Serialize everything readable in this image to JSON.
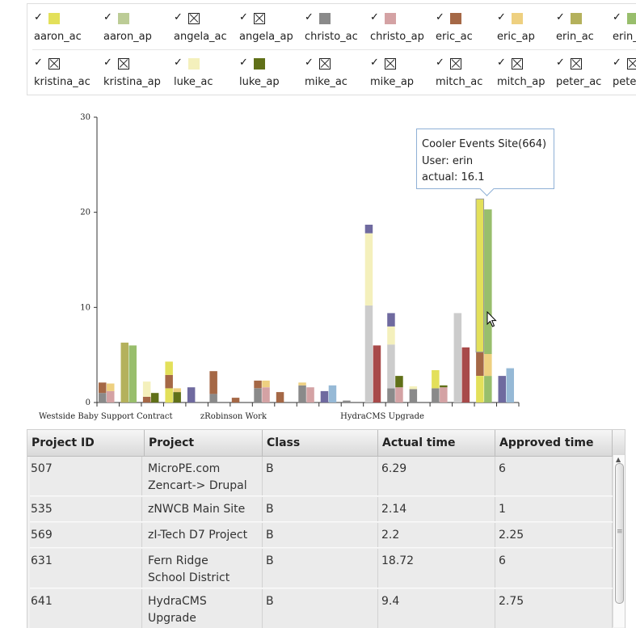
{
  "legend": {
    "rows": [
      [
        {
          "name": "aaron_ac",
          "checked": true,
          "visible": true,
          "color": "#e3e05a"
        },
        {
          "name": "aaron_ap",
          "checked": true,
          "visible": true,
          "color": "#bccc96"
        },
        {
          "name": "angela_ac",
          "checked": true,
          "visible": false,
          "color": "#cccccc"
        },
        {
          "name": "angela_ap",
          "checked": true,
          "visible": false,
          "color": "#e5e5e5"
        },
        {
          "name": "christo_ac",
          "checked": true,
          "visible": true,
          "color": "#8a8a8a"
        },
        {
          "name": "christo_ap",
          "checked": true,
          "visible": true,
          "color": "#d4a2a4"
        },
        {
          "name": "eric_ac",
          "checked": true,
          "visible": true,
          "color": "#a56846"
        },
        {
          "name": "eric_ap",
          "checked": true,
          "visible": true,
          "color": "#eed080"
        },
        {
          "name": "erin_ac",
          "checked": true,
          "visible": true,
          "color": "#b4b15c"
        },
        {
          "name": "erin_ap",
          "checked": true,
          "visible": true,
          "color": "#98be6c"
        }
      ],
      [
        {
          "name": "kristina_ac",
          "checked": true,
          "visible": false,
          "color": "#dddddd"
        },
        {
          "name": "kristina_ap",
          "checked": true,
          "visible": false,
          "color": "#ebebeb"
        },
        {
          "name": "luke_ac",
          "checked": true,
          "visible": true,
          "color": "#f4f0bc"
        },
        {
          "name": "luke_ap",
          "checked": true,
          "visible": true,
          "color": "#607018"
        },
        {
          "name": "mike_ac",
          "checked": true,
          "visible": false,
          "color": "#aaaaaa"
        },
        {
          "name": "mike_ap",
          "checked": true,
          "visible": false,
          "color": "#bbbbbb"
        },
        {
          "name": "mitch_ac",
          "checked": true,
          "visible": false,
          "color": "#a84a4a"
        },
        {
          "name": "mitch_ap",
          "checked": true,
          "visible": false,
          "color": "#c47676"
        },
        {
          "name": "peter_ac",
          "checked": true,
          "visible": false,
          "color": "#6f6a9f"
        },
        {
          "name": "peter_ap",
          "checked": true,
          "visible": false,
          "color": "#96b9d6"
        }
      ]
    ],
    "check_glyph": "✓"
  },
  "tooltip": {
    "line1": "Cooler Events Site(664)",
    "line2": "User: erin",
    "line3": "actual: 16.1"
  },
  "chart_data": {
    "type": "bar",
    "stacked": true,
    "ylim": [
      0,
      30
    ],
    "yticks": [
      0,
      10,
      20,
      30
    ],
    "grid": false,
    "visible_category_labels": [
      "Westside Baby Support Contract",
      "zRobinson Work",
      "HydraCMS Upgrade"
    ],
    "bars": [
      {
        "group": 0,
        "segments": [
          {
            "series": "christo_ac",
            "value": 1.0
          },
          {
            "series": "eric_ac",
            "value": 1.1
          }
        ]
      },
      {
        "group": 0,
        "segments": [
          {
            "series": "christo_ap",
            "value": 1.2
          },
          {
            "series": "eric_ap",
            "value": 0.8
          }
        ]
      },
      {
        "group": 1,
        "segments": [
          {
            "series": "erin_ac",
            "value": 6.3
          }
        ]
      },
      {
        "group": 1,
        "segments": [
          {
            "series": "erin_ap",
            "value": 6.0
          }
        ]
      },
      {
        "group": 2,
        "segments": [
          {
            "series": "eric_ac",
            "value": 0.6
          },
          {
            "series": "luke_ac",
            "value": 1.6
          }
        ]
      },
      {
        "group": 2,
        "segments": [
          {
            "series": "luke_ap",
            "value": 1.0
          }
        ]
      },
      {
        "group": 3,
        "segments": [
          {
            "series": "aaron_ac",
            "value": 1.5
          },
          {
            "series": "eric_ac",
            "value": 1.4
          },
          {
            "series": "aaron_ac",
            "value": 1.4
          }
        ]
      },
      {
        "group": 3,
        "segments": [
          {
            "series": "luke_ap",
            "value": 1.1
          },
          {
            "series": "eric_ap",
            "value": 0.4
          }
        ]
      },
      {
        "group": 4,
        "segments": [
          {
            "series": "peter_ac",
            "value": 1.6
          }
        ]
      },
      {
        "group": 5,
        "segments": [
          {
            "series": "christo_ac",
            "value": 0.9
          },
          {
            "series": "eric_ac",
            "value": 2.4
          }
        ]
      },
      {
        "group": 6,
        "segments": [
          {
            "series": "eric_ac",
            "value": 0.5
          }
        ]
      },
      {
        "group": 7,
        "segments": [
          {
            "series": "christo_ac",
            "value": 1.5
          },
          {
            "series": "eric_ac",
            "value": 0.8
          }
        ]
      },
      {
        "group": 7,
        "segments": [
          {
            "series": "christo_ap",
            "value": 1.6
          },
          {
            "series": "eric_ap",
            "value": 0.7
          }
        ]
      },
      {
        "group": 8,
        "segments": [
          {
            "series": "eric_ac",
            "value": 1.1
          }
        ]
      },
      {
        "group": 9,
        "segments": [
          {
            "series": "christo_ac",
            "value": 1.8
          },
          {
            "series": "eric_ap",
            "value": 0.3
          }
        ]
      },
      {
        "group": 9,
        "segments": [
          {
            "series": "christo_ap",
            "value": 1.6
          }
        ]
      },
      {
        "group": 10,
        "segments": [
          {
            "series": "peter_ac",
            "value": 1.2
          }
        ]
      },
      {
        "group": 10,
        "segments": [
          {
            "series": "peter_ap",
            "value": 1.8
          }
        ]
      },
      {
        "group": 11,
        "segments": [
          {
            "series": "christo_ac",
            "value": 0.2
          }
        ]
      },
      {
        "group": 12,
        "segments": [
          {
            "series": "angela_ac",
            "value": 10.2
          },
          {
            "series": "luke_ac",
            "value": 7.6
          },
          {
            "series": "peter_ac",
            "value": 0.9
          }
        ]
      },
      {
        "group": 12,
        "segments": [
          {
            "series": "mitch_ac",
            "value": 6.0
          }
        ]
      },
      {
        "group": 13,
        "segments": [
          {
            "series": "christo_ac",
            "value": 1.5
          },
          {
            "series": "angela_ac",
            "value": 4.6
          },
          {
            "series": "luke_ac",
            "value": 1.9
          },
          {
            "series": "peter_ac",
            "value": 1.4
          }
        ]
      },
      {
        "group": 13,
        "segments": [
          {
            "series": "christo_ap",
            "value": 1.6
          },
          {
            "series": "luke_ap",
            "value": 1.2
          }
        ]
      },
      {
        "group": 14,
        "segments": [
          {
            "series": "christo_ac",
            "value": 1.4
          },
          {
            "series": "luke_ac",
            "value": 0.3
          }
        ]
      },
      {
        "group": 15,
        "segments": [
          {
            "series": "christo_ac",
            "value": 1.5
          },
          {
            "series": "aaron_ac",
            "value": 1.9
          }
        ]
      },
      {
        "group": 15,
        "segments": [
          {
            "series": "christo_ap",
            "value": 1.6
          },
          {
            "series": "luke_ap",
            "value": 0.2
          }
        ]
      },
      {
        "group": 16,
        "segments": [
          {
            "series": "angela_ac",
            "value": 9.4
          }
        ]
      },
      {
        "group": 16,
        "segments": [
          {
            "series": "mitch_ac",
            "value": 5.8
          }
        ]
      },
      {
        "group": 17,
        "segments": [
          {
            "series": "aaron_ac",
            "value": 2.8
          },
          {
            "series": "eric_ac",
            "value": 2.5
          },
          {
            "series": "aaron_ac",
            "value": 16.1
          }
        ]
      },
      {
        "group": 17,
        "segments": [
          {
            "series": "erin_ap",
            "value": 2.8
          },
          {
            "series": "eric_ap",
            "value": 2.3
          },
          {
            "series": "erin_ap",
            "value": 15.2
          }
        ]
      },
      {
        "group": 18,
        "segments": [
          {
            "series": "peter_ac",
            "value": 2.8
          }
        ]
      },
      {
        "group": 18,
        "segments": [
          {
            "series": "peter_ap",
            "value": 3.6
          }
        ]
      }
    ]
  },
  "grid_table": {
    "columns": [
      "Project ID",
      "Project",
      "Class",
      "Actual time",
      "Approved time"
    ],
    "rows": [
      {
        "id": "507",
        "project": "MicroPE.com Zencart-> Drupal",
        "class": "B",
        "actual": "6.29",
        "approved": "6"
      },
      {
        "id": "535",
        "project": "zNWCB Main Site",
        "class": "B",
        "actual": "2.14",
        "approved": "1"
      },
      {
        "id": "569",
        "project": "zI-Tech D7 Project",
        "class": "B",
        "actual": "2.2",
        "approved": "2.25"
      },
      {
        "id": "631",
        "project": "Fern Ridge School District",
        "class": "B",
        "actual": "18.72",
        "approved": "6"
      },
      {
        "id": "641",
        "project": "HydraCMS Upgrade",
        "class": "B",
        "actual": "9.4",
        "approved": "2.75"
      }
    ]
  }
}
